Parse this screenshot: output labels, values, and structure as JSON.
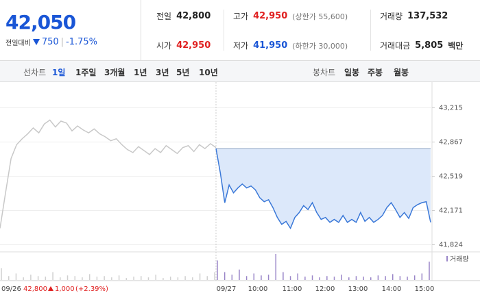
{
  "header": {
    "price": "42,050",
    "change_label": "전일대비",
    "change": "750",
    "change_pct": "-1.75%"
  },
  "stats": [
    {
      "label": "전일",
      "value": "42,800"
    },
    {
      "label": "고가",
      "value": "42,950",
      "extra": "(상한가 55,600)"
    },
    {
      "label": "거래량",
      "value": "137,532"
    },
    {
      "label": "시가",
      "value": "42,950"
    },
    {
      "label": "저가",
      "value": "41,950",
      "extra": "(하한가 30,000)"
    },
    {
      "label": "거래대금",
      "value": "5,805",
      "unit": "백만"
    }
  ],
  "tabs": {
    "line_label": "선차트",
    "line_periods": [
      "1일",
      "1주일",
      "3개월",
      "1년",
      "3년",
      "5년",
      "10년"
    ],
    "candle_label": "봉차트",
    "candle_periods": [
      "일봉",
      "주봉",
      "월봉"
    ]
  },
  "chart_data": {
    "type": "line",
    "ylim": [
      41750,
      43420
    ],
    "yticks": [
      {
        "value": 43215,
        "label": "43,215"
      },
      {
        "value": 42867,
        "label": "42,867"
      },
      {
        "value": 42519,
        "label": "42,519"
      },
      {
        "value": 42171,
        "label": "42,171"
      },
      {
        "value": 41824,
        "label": "41,824"
      }
    ],
    "reference": 42800,
    "x_labels": [
      "09/27",
      "10:00",
      "11:00",
      "12:00",
      "13:00",
      "14:00",
      "15:00"
    ],
    "series": [
      {
        "color": "#c8c8c8",
        "values": [
          41990,
          42350,
          42700,
          42840,
          42900,
          42950,
          43010,
          42960,
          43050,
          43090,
          43020,
          43080,
          43060,
          42980,
          43030,
          42990,
          42960,
          43000,
          42950,
          42920,
          42880,
          42900,
          42840,
          42790,
          42760,
          42820,
          42780,
          42740,
          42800,
          42760,
          42830,
          42790,
          42750,
          42810,
          42830,
          42770,
          42840,
          42800,
          42850,
          42810
        ]
      },
      {
        "color": "#3a78d8",
        "values": [
          42800,
          42550,
          42250,
          42430,
          42350,
          42400,
          42440,
          42400,
          42420,
          42380,
          42300,
          42260,
          42280,
          42200,
          42100,
          42030,
          42060,
          41990,
          42100,
          42150,
          42220,
          42180,
          42250,
          42150,
          42080,
          42100,
          42050,
          42080,
          42050,
          42120,
          42050,
          42080,
          42050,
          42150,
          42060,
          42100,
          42050,
          42080,
          42120,
          42200,
          42250,
          42180,
          42100,
          42150,
          42090,
          42200,
          42230,
          42250,
          42260,
          42050
        ]
      }
    ],
    "volume": {
      "name": "거래량",
      "prev_color": "#d0d0d0",
      "color": "#9a86c8",
      "prev_values": [
        900,
        300,
        500,
        200,
        400,
        300,
        250,
        600,
        200,
        350,
        300,
        200,
        450,
        250,
        300,
        200,
        350,
        150,
        250,
        300,
        200,
        400,
        150,
        250,
        200,
        300,
        200,
        500,
        300,
        600
      ],
      "values": [
        1500,
        600,
        400,
        800,
        300,
        500,
        350,
        400,
        2000,
        600,
        300,
        500,
        250,
        350,
        200,
        300,
        250,
        400,
        200,
        300,
        250,
        200,
        350,
        300,
        450,
        300,
        250,
        350,
        500,
        1400
      ]
    },
    "footer": {
      "date": "09/26",
      "close": "42,800",
      "change": "1,000",
      "change_pct": "(+2.39%)"
    }
  }
}
